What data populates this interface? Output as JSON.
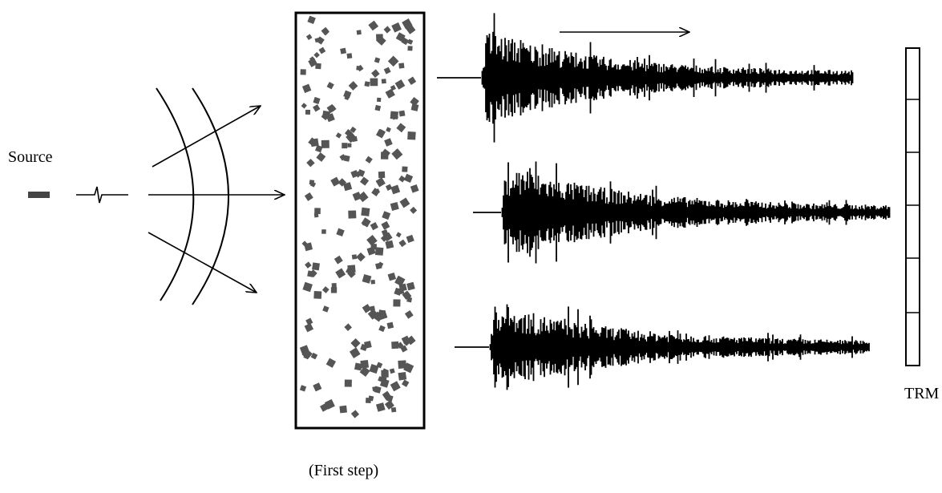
{
  "labels": {
    "source": "Source",
    "trm": "TRM",
    "step": "(First step)"
  }
}
